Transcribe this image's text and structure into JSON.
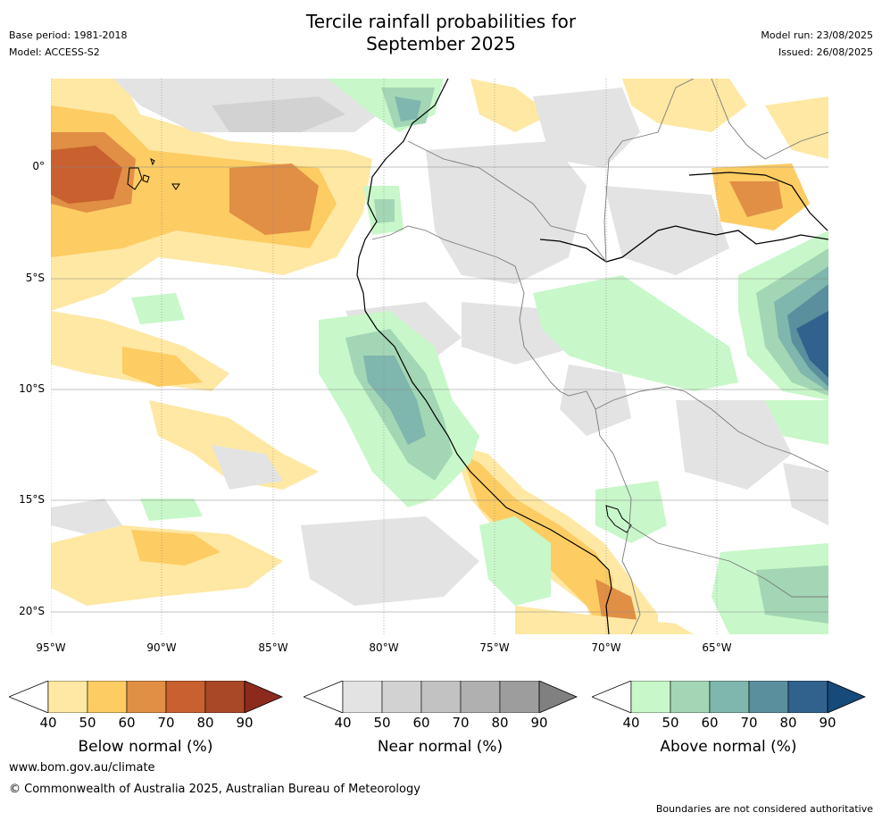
{
  "header": {
    "title_line1": "Tercile rainfall probabilities for",
    "title_line2": "September 2025",
    "base_period": "Base period: 1981-2018",
    "model": "Model: ACCESS-S2",
    "model_run": "Model run: 23/08/2025",
    "issued": "Issued: 26/08/2025"
  },
  "axes": {
    "x_ticks": [
      "95°W",
      "90°W",
      "85°W",
      "80°W",
      "75°W",
      "70°W",
      "65°W"
    ],
    "y_ticks": [
      "0°",
      "5°S",
      "10°S",
      "15°S",
      "20°S"
    ]
  },
  "colorbars": [
    {
      "label": "Below normal (%)",
      "ticks": [
        "40",
        "50",
        "60",
        "70",
        "80",
        "90"
      ],
      "colors": [
        "#ffffff",
        "#fee8a3",
        "#fdcc63",
        "#e08f45",
        "#c9602f",
        "#a84826",
        "#8c2a1d"
      ]
    },
    {
      "label": "Near normal (%)",
      "ticks": [
        "40",
        "50",
        "60",
        "70",
        "80",
        "90"
      ],
      "colors": [
        "#ffffff",
        "#e3e3e3",
        "#d2d2d2",
        "#c2c2c2",
        "#b0b0b0",
        "#9d9d9d",
        "#808080"
      ]
    },
    {
      "label": "Above normal (%)",
      "ticks": [
        "40",
        "50",
        "60",
        "70",
        "80",
        "90"
      ],
      "colors": [
        "#ffffff",
        "#c8f7c9",
        "#a3d6b4",
        "#7fb6ad",
        "#5a8f9e",
        "#31628e",
        "#164a7a"
      ]
    }
  ],
  "footer": {
    "website": "www.bom.gov.au/climate",
    "copyright": "© Commonwealth of Australia 2025, Australian Bureau of Meteorology",
    "disclaimer": "Boundaries are not considered authoritative"
  }
}
